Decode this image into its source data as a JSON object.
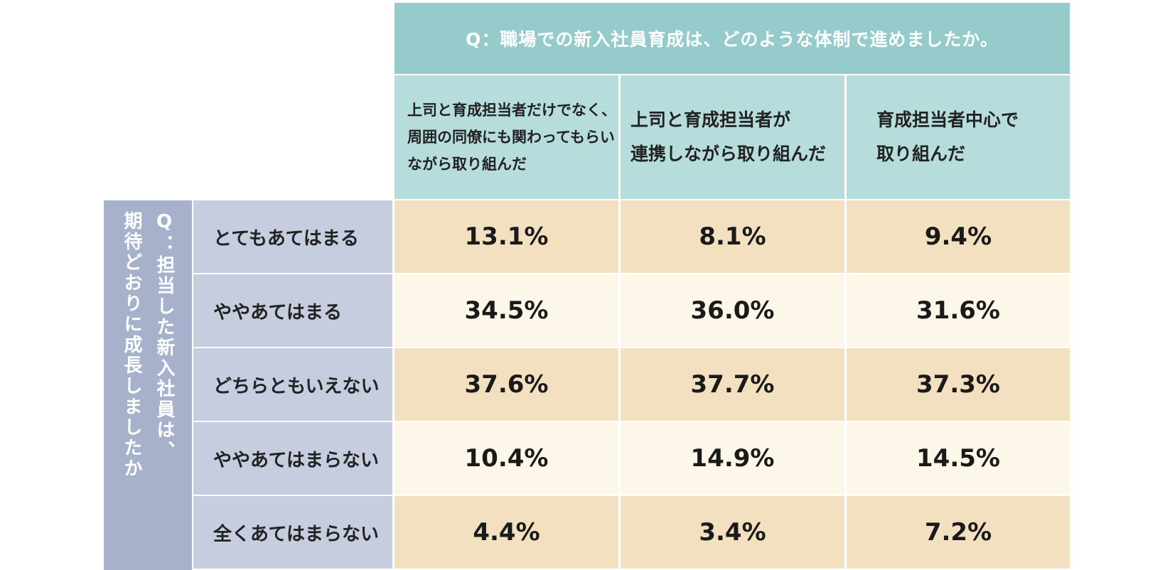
{
  "chart_data": {
    "type": "table",
    "title": "Q：職場での新入社員育成は、どのような体制で進めましたか。",
    "row_question": "Q：担当した新入社員は、\n期待どおりに成長しましたか",
    "columns": [
      "上司と育成担当者だけでなく、\n周囲の同僚にも関わってもらい\nながら取り組んだ",
      "上司と育成担当者が\n連携しながら取り組んだ",
      "育成担当者中心で\n取り組んだ"
    ],
    "rows": [
      {
        "label": "とてもあてはまる",
        "values": [
          "13.1%",
          "8.1%",
          "9.4%"
        ]
      },
      {
        "label": "ややあてはまる",
        "values": [
          "34.5%",
          "36.0%",
          "31.6%"
        ]
      },
      {
        "label": "どちらともいえない",
        "values": [
          "37.6%",
          "37.7%",
          "37.3%"
        ]
      },
      {
        "label": "ややあてはまらない",
        "values": [
          "10.4%",
          "14.9%",
          "14.5%"
        ]
      },
      {
        "label": "全くあてはまらない",
        "values": [
          "4.4%",
          "3.4%",
          "7.2%"
        ]
      }
    ]
  },
  "colors": {
    "title_bg": "#96cbcc",
    "header_bg": "#b6dcdc",
    "side_bg": "#a6b2cc",
    "row_label_bg": "#c5cddf",
    "row_dark": "#f3e0c0",
    "row_light": "#fcf7e9"
  }
}
